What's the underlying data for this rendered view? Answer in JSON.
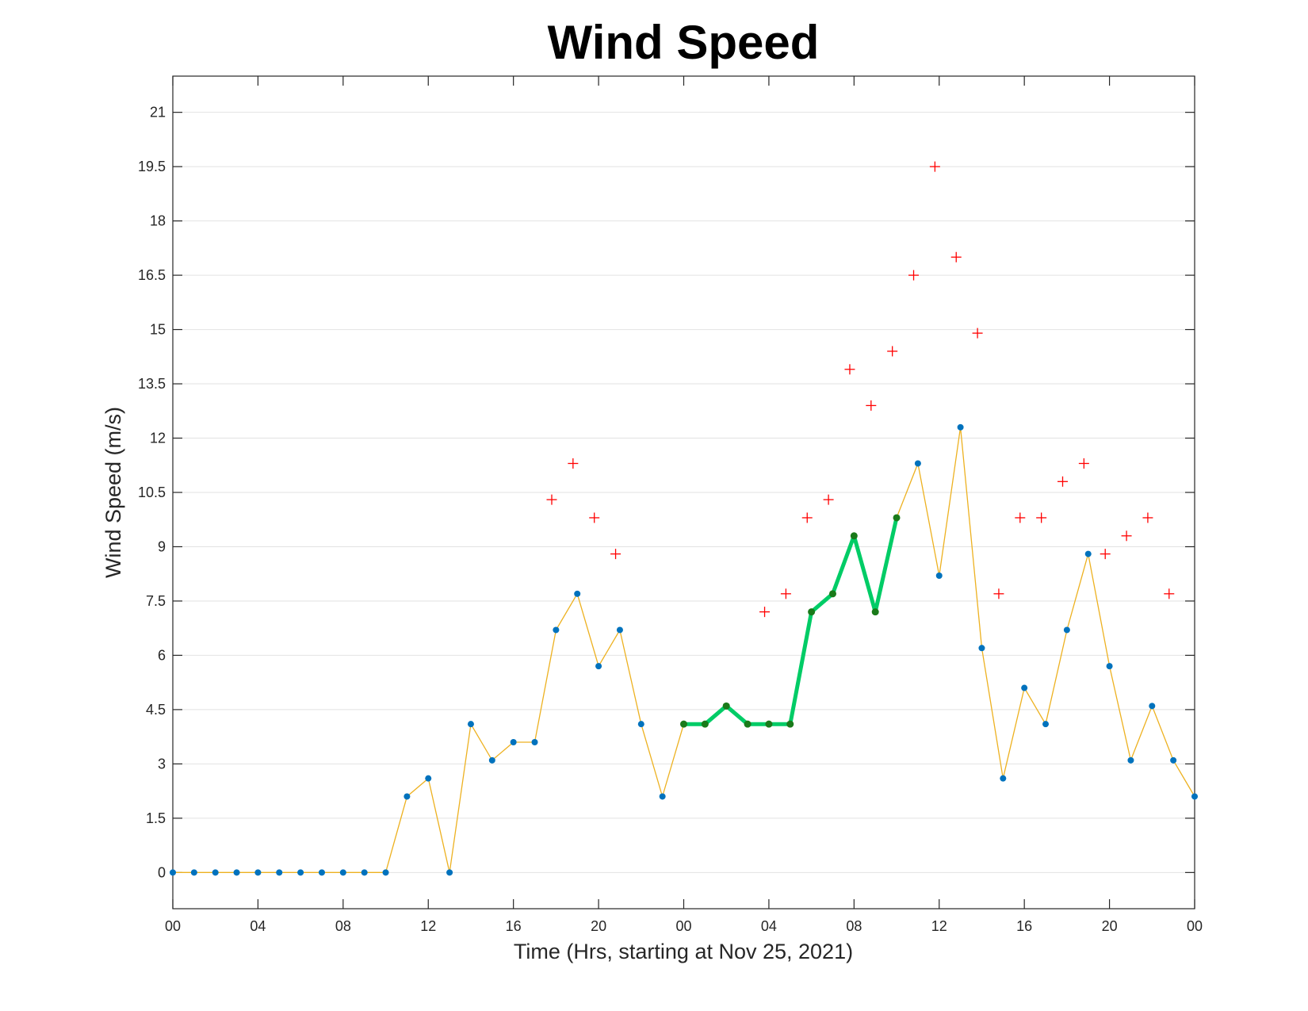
{
  "chart_data": {
    "type": "line",
    "title": "Wind Speed",
    "xlabel": "Time (Hrs, starting at Nov 25, 2021)",
    "ylabel": "Wind Speed (m/s)",
    "xlim": [
      0,
      48
    ],
    "ylim": [
      -1,
      22
    ],
    "x_ticks": [
      0,
      4,
      8,
      12,
      16,
      20,
      24,
      28,
      32,
      36,
      40,
      44,
      48
    ],
    "x_tick_labels": [
      "00",
      "04",
      "08",
      "12",
      "16",
      "20",
      "00",
      "04",
      "08",
      "12",
      "16",
      "20",
      "00"
    ],
    "y_ticks": [
      0,
      1.5,
      3,
      4.5,
      6,
      7.5,
      9,
      10.5,
      12,
      13.5,
      15,
      16.5,
      18,
      19.5,
      21
    ],
    "y_tick_labels": [
      "0",
      "1.5",
      "3",
      "4.5",
      "6",
      "7.5",
      "9",
      "10.5",
      "12",
      "13.5",
      "15",
      "16.5",
      "18",
      "19.5",
      "21"
    ],
    "grid": "horizontal",
    "colors": {
      "speed_line": "#EDB120",
      "speed_marker": "#0072BD",
      "highlight_line": "#00CC66",
      "highlight_marker": "#1A7A1A",
      "gust_marker": "#FF0000"
    },
    "series": [
      {
        "style": "speed",
        "x": [
          0,
          1,
          2,
          3,
          4,
          5,
          6,
          7,
          8,
          9,
          10,
          11,
          12,
          13,
          14,
          15,
          16,
          17,
          18,
          19,
          20,
          21,
          22,
          23,
          24,
          25,
          26,
          27,
          28,
          29,
          30,
          31,
          32,
          33,
          34,
          35,
          36,
          37,
          38,
          39,
          40,
          41,
          42,
          43,
          44,
          45,
          46,
          47,
          48
        ],
        "y": [
          0,
          0,
          0,
          0,
          0,
          0,
          0,
          0,
          0,
          0,
          0,
          2.1,
          2.6,
          0,
          4.1,
          3.1,
          3.6,
          3.6,
          6.7,
          7.7,
          5.7,
          6.7,
          4.1,
          2.1,
          4.1,
          4.1,
          4.6,
          4.1,
          4.1,
          4.1,
          7.2,
          7.7,
          9.3,
          7.2,
          9.8,
          11.3,
          8.2,
          12.3,
          6.2,
          2.6,
          5.1,
          4.1,
          6.7,
          8.8,
          5.7,
          3.1,
          4.6,
          3.1,
          2.1
        ]
      },
      {
        "style": "highlight",
        "x": [
          24,
          25,
          26,
          27,
          28,
          29,
          30,
          31,
          32,
          33,
          34
        ],
        "y": [
          4.1,
          4.1,
          4.6,
          4.1,
          4.1,
          4.1,
          7.2,
          7.7,
          9.3,
          7.2,
          9.8
        ]
      },
      {
        "style": "gust",
        "x": [
          17.8,
          18.8,
          19.8,
          20.8,
          27.8,
          28.8,
          29.8,
          30.8,
          31.8,
          32.8,
          33.8,
          34.8,
          35.8,
          36.8,
          37.8,
          38.8,
          39.8,
          40.8,
          41.8,
          42.8,
          43.8,
          44.8,
          45.8,
          46.8
        ],
        "y": [
          10.3,
          11.3,
          9.8,
          8.8,
          7.2,
          7.7,
          9.8,
          10.3,
          13.9,
          12.9,
          14.4,
          16.5,
          19.5,
          17,
          14.9,
          7.7,
          9.8,
          9.8,
          10.8,
          11.3,
          8.8,
          9.3,
          9.8,
          7.7
        ]
      }
    ]
  }
}
